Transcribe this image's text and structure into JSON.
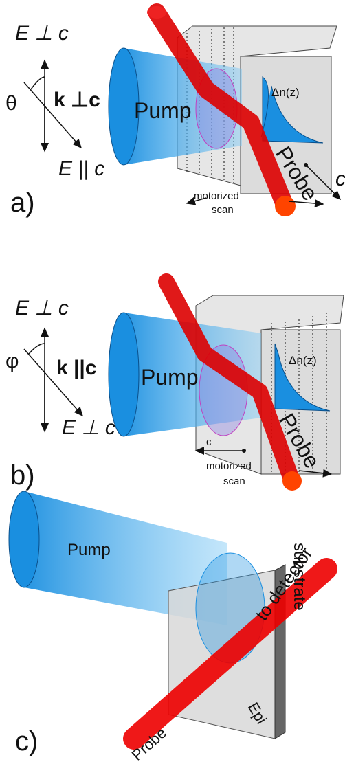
{
  "panels": [
    {
      "label": "a)",
      "polarization_top": "E ⊥ c",
      "angle": "θ",
      "wavevector": "k ⊥c",
      "polarization_bottom": "E || c",
      "pump": "Pump",
      "index_profile": "Δn(z)",
      "probe": "Probe",
      "axis": "c",
      "scan": [
        "motorized",
        "scan"
      ]
    },
    {
      "label": "b)",
      "polarization_top": "E ⊥ c",
      "angle": "φ",
      "wavevector": "k ||c",
      "polarization_bottom": "E ⊥ c",
      "pump": "Pump",
      "index_profile": "Δn(z)",
      "probe": "Probe",
      "axis": "c",
      "scan": [
        "motorized",
        "scan"
      ]
    },
    {
      "label": "c)",
      "pump": "Pump",
      "probe": "Probe",
      "detector": "to detector",
      "substrate": "substrate",
      "epi": "Epi"
    }
  ]
}
